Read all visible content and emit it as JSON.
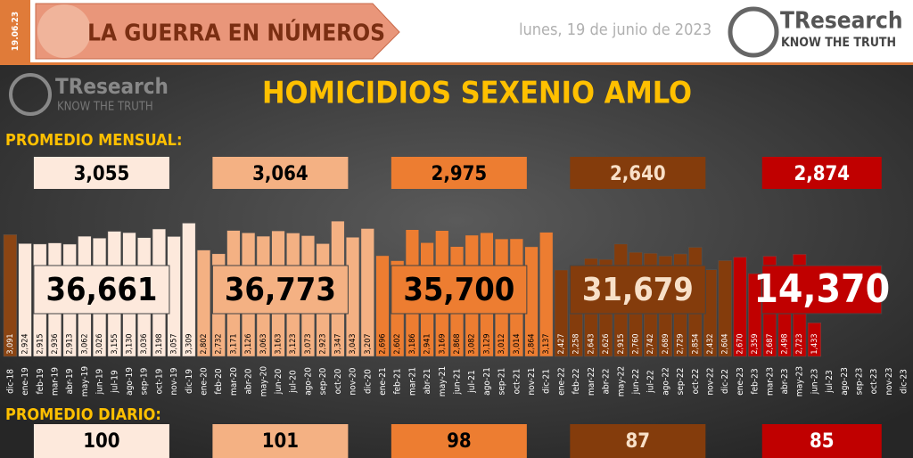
{
  "header": {
    "code": "19.06.23",
    "title": "LA GUERRA EN NÚMEROS",
    "date": "lunes, 19 de junio de 2023",
    "logo": "TResearch",
    "tagline": "KNOW THE TRUTH"
  },
  "chart_data": {
    "type": "bar",
    "title": "HOMICIDIOS SEXENIO AMLO",
    "monthly_label": "PROMEDIO MENSUAL:",
    "daily_label": "PROMEDIO DIARIO:",
    "categories": [
      "dic-18",
      "ene-19",
      "feb-19",
      "mar-19",
      "abr-19",
      "may-19",
      "jun-19",
      "jul-19",
      "ago-19",
      "sep-19",
      "oct-19",
      "nov-19",
      "dic-19",
      "ene-20",
      "feb-20",
      "mar-20",
      "abr-20",
      "may-20",
      "jun-20",
      "jul-20",
      "ago-20",
      "sep-20",
      "oct-20",
      "nov-20",
      "dic-20",
      "ene-21",
      "feb-21",
      "mar-21",
      "abr-21",
      "may-21",
      "jun-21",
      "jul-21",
      "ago-21",
      "sep-21",
      "oct-21",
      "nov-21",
      "dic-21",
      "ene-22",
      "feb-22",
      "mar-22",
      "abr-22",
      "may-22",
      "jun-22",
      "jul-22",
      "ago-22",
      "sep-22",
      "oct-22",
      "nov-22",
      "dic-22",
      "ene-23",
      "feb-23",
      "mar-23",
      "abr-23",
      "may-23",
      "jun-23",
      "jul-23",
      "ago-23",
      "sep-23",
      "oct-23",
      "nov-23",
      "dic-23"
    ],
    "values": [
      3091,
      2924,
      2915,
      2936,
      2913,
      3062,
      3026,
      3155,
      3130,
      3036,
      3198,
      3057,
      3309,
      2802,
      2732,
      3171,
      3126,
      3063,
      3163,
      3123,
      3073,
      2923,
      3347,
      3043,
      3207,
      2696,
      2602,
      3186,
      2941,
      3169,
      2868,
      3082,
      3129,
      3012,
      3014,
      2864,
      3137,
      2427,
      2258,
      2643,
      2626,
      2915,
      2760,
      2742,
      2689,
      2729,
      2854,
      2432,
      2604,
      2670,
      2359,
      2687,
      2498,
      2723,
      1433,
      null,
      null,
      null,
      null,
      null,
      null
    ],
    "value_labels": [
      "3,091",
      "2,924",
      "2,915",
      "2,936",
      "2,913",
      "3,062",
      "3,026",
      "3,155",
      "3,130",
      "3,036",
      "3,198",
      "3,057",
      "3,309",
      "2,802",
      "2,732",
      "3,171",
      "3,126",
      "3,063",
      "3,163",
      "3,123",
      "3,073",
      "2,923",
      "3,347",
      "3,043",
      "3,207",
      "2,696",
      "2,602",
      "3,186",
      "2,941",
      "3,169",
      "2,868",
      "3,082",
      "3,129",
      "3,012",
      "3,014",
      "2,864",
      "3,137",
      "2,427",
      "2,258",
      "2,643",
      "2,626",
      "2,915",
      "2,760",
      "2,742",
      "2,689",
      "2,729",
      "2,854",
      "2,432",
      "2,604",
      "2,670",
      "2,359",
      "2,687",
      "2,498",
      "2,723",
      "1,433",
      null,
      null,
      null,
      null,
      null,
      null
    ],
    "bar_colors": [
      "#8b4513",
      "#fde9dc",
      "#fde9dc",
      "#fde9dc",
      "#fde9dc",
      "#fde9dc",
      "#fde9dc",
      "#fde9dc",
      "#fde9dc",
      "#fde9dc",
      "#fde9dc",
      "#fde9dc",
      "#fde9dc",
      "#f4b183",
      "#f4b183",
      "#f4b183",
      "#f4b183",
      "#f4b183",
      "#f4b183",
      "#f4b183",
      "#f4b183",
      "#f4b183",
      "#f4b183",
      "#f4b183",
      "#f4b183",
      "#ed7d31",
      "#ed7d31",
      "#ed7d31",
      "#ed7d31",
      "#ed7d31",
      "#ed7d31",
      "#ed7d31",
      "#ed7d31",
      "#ed7d31",
      "#ed7d31",
      "#ed7d31",
      "#ed7d31",
      "#843c0c",
      "#843c0c",
      "#843c0c",
      "#843c0c",
      "#843c0c",
      "#843c0c",
      "#843c0c",
      "#843c0c",
      "#843c0c",
      "#843c0c",
      "#843c0c",
      "#843c0c",
      "#c00000",
      "#c00000",
      "#c00000",
      "#c00000",
      "#c00000",
      "#c00000",
      "#c00000",
      "#c00000",
      "#c00000",
      "#c00000",
      "#c00000",
      "#c00000"
    ],
    "ylim": [
      800,
      3500
    ],
    "summaries": [
      {
        "monthly": {
          "value": 3055,
          "label": "3,055"
        },
        "total": {
          "value": 36661,
          "label": "36,661"
        },
        "daily": 100,
        "color": "#fde9dc",
        "text_color": "#000000"
      },
      {
        "monthly": {
          "value": 3064,
          "label": "3,064"
        },
        "total": {
          "value": 36773,
          "label": "36,773"
        },
        "daily": 101,
        "color": "#f4b183",
        "text_color": "#000000"
      },
      {
        "monthly": {
          "value": 2975,
          "label": "2,975"
        },
        "total": {
          "value": 35700,
          "label": "35,700"
        },
        "daily": 98,
        "color": "#ed7d31",
        "text_color": "#000000"
      },
      {
        "monthly": {
          "value": 2640,
          "label": "2,640"
        },
        "total": {
          "value": 31679,
          "label": "31,679"
        },
        "daily": 87,
        "color": "#843c0c",
        "text_color": "#f8e0c8"
      },
      {
        "monthly": {
          "value": 2874,
          "label": "2,874"
        },
        "total": {
          "value": 14370,
          "label": "14,370"
        },
        "daily": 85,
        "color": "#c00000",
        "text_color": "#ffffff"
      }
    ]
  }
}
